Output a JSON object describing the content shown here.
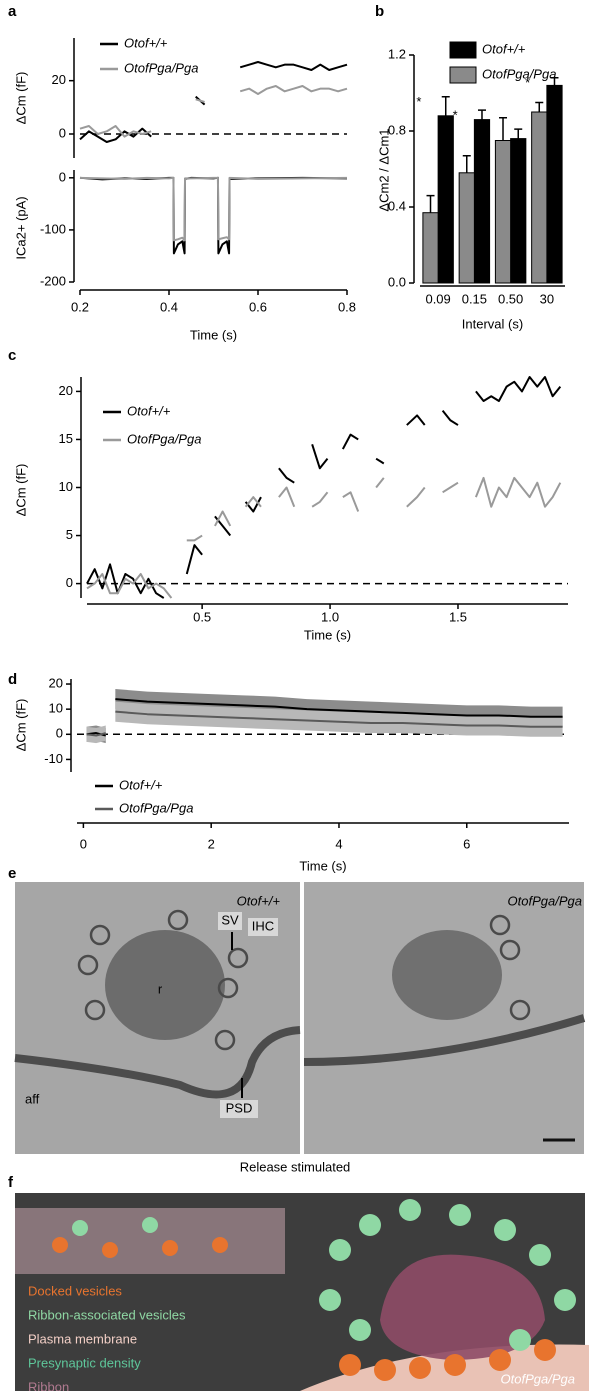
{
  "chart_data": [
    {
      "type": "line",
      "panel": "a",
      "y_label": "ΔCm (fF)",
      "x": [
        0.2,
        0.22,
        0.24,
        0.26,
        0.28,
        0.3,
        0.32,
        0.34,
        0.36,
        0.38,
        0.4,
        0.42,
        0.44,
        0.46,
        0.48,
        0.5,
        0.52,
        0.54,
        0.56,
        0.58,
        0.6,
        0.62,
        0.64,
        0.66,
        0.68,
        0.7,
        0.72,
        0.74,
        0.76,
        0.78,
        0.8
      ],
      "series": [
        {
          "name": "Otof+/+",
          "color": "#000000",
          "values": [
            -2,
            1,
            -1,
            -3,
            -2,
            1,
            -1,
            2,
            -1,
            null,
            null,
            null,
            null,
            14,
            11,
            null,
            null,
            null,
            25,
            26,
            27,
            26,
            25,
            26,
            26,
            25,
            24,
            26,
            24,
            25,
            26
          ]
        },
        {
          "name": "OtofPga/Pga",
          "color": "#9a9a9a",
          "values": [
            2,
            3,
            0,
            1,
            3,
            -1,
            1,
            0,
            1,
            null,
            null,
            null,
            null,
            13,
            12,
            null,
            null,
            null,
            16,
            17,
            15,
            17,
            18,
            16,
            17,
            18,
            16,
            17,
            17,
            16,
            17
          ]
        }
      ],
      "xlim": [
        0.2,
        0.8
      ],
      "ylim": [
        -9,
        36
      ],
      "yticks": [
        0,
        20
      ],
      "reference_line": 0
    },
    {
      "type": "line",
      "y_label": "ICa2+ (pA)",
      "x_label": "Time (s)",
      "x": [
        0.2,
        0.25,
        0.3,
        0.35,
        0.4,
        0.41,
        0.411,
        0.42,
        0.43,
        0.435,
        0.436,
        0.45,
        0.5,
        0.51,
        0.511,
        0.52,
        0.53,
        0.535,
        0.536,
        0.6,
        0.7,
        0.8
      ],
      "series": [
        {
          "color": "#000000",
          "values": [
            0,
            -3,
            -1,
            -2,
            0,
            0,
            -145,
            -128,
            -122,
            -145,
            -2,
            0,
            -1,
            0,
            -145,
            -128,
            -122,
            -145,
            -2,
            -1,
            0,
            -1
          ]
        },
        {
          "color": "#9a9a9a",
          "values": [
            0,
            -1,
            -2,
            0,
            -1,
            0,
            -120,
            -118,
            -115,
            -120,
            -1,
            -1,
            0,
            0,
            -118,
            -116,
            -114,
            -118,
            0,
            -2,
            -1,
            0
          ]
        }
      ],
      "xlim": [
        0.2,
        0.8
      ],
      "xticks": [
        0.2,
        0.4,
        0.6,
        0.8
      ],
      "ylim": [
        -200,
        15
      ],
      "yticks": [
        -200,
        -100,
        0
      ]
    },
    {
      "type": "bar",
      "panel": "b",
      "y_label": "ΔCm2 / ΔCm1",
      "x_label": "Interval (s)",
      "categories": [
        "0.09",
        "0.15",
        "0.50",
        "30"
      ],
      "series": [
        {
          "name": "Otof+/+",
          "color": "#000000",
          "values": [
            0.88,
            0.86,
            0.76,
            1.04
          ],
          "errors": [
            0.1,
            0.05,
            0.05,
            0.04
          ]
        },
        {
          "name": "OtofPga/Pga",
          "color": "#8a8a8a",
          "values": [
            0.37,
            0.58,
            0.75,
            0.9
          ],
          "errors": [
            0.09,
            0.09,
            0.12,
            0.05
          ]
        }
      ],
      "significance": [
        "*",
        "*",
        null,
        "*"
      ],
      "ylim": [
        0,
        1.2
      ],
      "yticks": [
        {
          "value": 0,
          "label": "0.0"
        },
        0.4,
        0.8,
        1.2
      ]
    },
    {
      "type": "line",
      "panel": "c",
      "y_label": "ΔCm (fF)",
      "x_label": "Time (s)",
      "x": [
        0.05,
        0.08,
        0.11,
        0.14,
        0.17,
        0.2,
        0.23,
        0.26,
        0.29,
        0.32,
        0.35,
        0.38,
        0.41,
        0.44,
        0.47,
        0.5,
        0.52,
        0.55,
        0.58,
        0.61,
        0.64,
        0.67,
        0.7,
        0.73,
        0.76,
        0.8,
        0.83,
        0.86,
        0.89,
        0.93,
        0.96,
        0.99,
        1.02,
        1.05,
        1.08,
        1.11,
        1.15,
        1.18,
        1.21,
        1.25,
        1.3,
        1.34,
        1.37,
        1.41,
        1.44,
        1.47,
        1.5,
        1.54,
        1.57,
        1.6,
        1.63,
        1.66,
        1.69,
        1.72,
        1.75,
        1.78,
        1.81,
        1.84,
        1.87,
        1.9
      ],
      "series": [
        {
          "name": "Otof+/+",
          "color": "#000000",
          "values": [
            0,
            1.5,
            -0.5,
            2,
            -1,
            1,
            0.5,
            -1,
            0.5,
            -1,
            -1.5,
            null,
            null,
            1,
            4,
            3,
            null,
            7,
            6,
            5,
            null,
            8.5,
            7.5,
            9,
            null,
            12,
            11,
            10.5,
            null,
            14.5,
            12,
            13,
            null,
            14,
            15.5,
            15,
            null,
            13,
            12.5,
            null,
            16.5,
            17.5,
            16.5,
            null,
            18,
            17,
            16.5,
            null,
            20,
            19,
            19.5,
            19,
            20.5,
            21,
            20,
            21.5,
            20.5,
            21.5,
            19.5,
            20.5
          ]
        },
        {
          "name": "OtofPga/Pga",
          "color": "#9a9a9a",
          "values": [
            -0.5,
            0,
            1,
            -1,
            -1,
            0.5,
            0,
            1,
            -0.5,
            0,
            -0.5,
            -1.5,
            null,
            4.5,
            4.5,
            5,
            null,
            6,
            7.5,
            6,
            null,
            8,
            9,
            8,
            null,
            9,
            10,
            8,
            null,
            8,
            8.5,
            9.5,
            null,
            9,
            9.5,
            7.5,
            null,
            10,
            11,
            null,
            8,
            9,
            10,
            null,
            9.5,
            10,
            10.5,
            null,
            9,
            11,
            8,
            10,
            9,
            11,
            10,
            9,
            10.5,
            8,
            9,
            10.5
          ]
        }
      ],
      "xlim": [
        0.05,
        1.93
      ],
      "xticks": [
        0.5,
        {
          "value": 1,
          "label": "1.0"
        },
        1.5
      ],
      "ylim": [
        -1.5,
        21.5
      ],
      "yticks": [
        0,
        5,
        10,
        15,
        20
      ],
      "reference_line": 0
    },
    {
      "type": "line",
      "panel": "d",
      "y_label": "ΔCm (fF)",
      "x_label": "Time (s)",
      "x": [
        0.05,
        0.2,
        0.35,
        0.42,
        0.5,
        1,
        1.5,
        2,
        2.5,
        3,
        3.5,
        4,
        4.5,
        5,
        5.5,
        6,
        6.5,
        7,
        7.5
      ],
      "series": [
        {
          "name": "Otof+/+",
          "color": "#000000",
          "error_color": "#8c8c8c",
          "values": [
            0,
            0.5,
            -0.5,
            null,
            14,
            13,
            12.5,
            12,
            11.5,
            11,
            10,
            9.5,
            9,
            8.5,
            8,
            7.5,
            7.5,
            7,
            7
          ],
          "errors": [
            3,
            3,
            3,
            null,
            4,
            4,
            4,
            4,
            4,
            4,
            4,
            4,
            4,
            4,
            4,
            4,
            4,
            4,
            4
          ]
        },
        {
          "name": "OtofPga/Pga",
          "color": "#5a5a5a",
          "error_color": "#b8b8b8",
          "values": [
            0,
            -0.5,
            0.5,
            null,
            9,
            8,
            7.5,
            7,
            6.5,
            6,
            5.5,
            5,
            4.5,
            4.5,
            4,
            3.5,
            3.5,
            3,
            3
          ],
          "errors": [
            3,
            3,
            3,
            null,
            4,
            4,
            4,
            4,
            4,
            4,
            4,
            4,
            4,
            4,
            4,
            4,
            4,
            4,
            4
          ]
        }
      ],
      "xlim": [
        -0.1,
        7.6
      ],
      "xticks": [
        0,
        2,
        4,
        6
      ],
      "ylim": [
        -15,
        22
      ],
      "yticks": [
        -10,
        0,
        10,
        20
      ],
      "reference_line": 0
    }
  ],
  "panel_e": {
    "panel": "e",
    "left_label": "Otof+/+",
    "right_label": "OtofPga/Pga",
    "labels": [
      "SV",
      "IHC",
      "r",
      "aff",
      "PSD"
    ],
    "caption": "Release stimulated"
  },
  "panel_f": {
    "panel": "f",
    "label": "OtofPga/Pga",
    "legend": [
      {
        "text": "Docked vesicles",
        "color": "#e8742e"
      },
      {
        "text": "Ribbon-associated vesicles",
        "color": "#8fd8a4"
      },
      {
        "text": "Plasma membrane",
        "color": "#f2cfc6"
      },
      {
        "text": "Presynaptic density",
        "color": "#5ec79b"
      },
      {
        "text": "Ribbon",
        "color": "#b07a90"
      }
    ]
  }
}
